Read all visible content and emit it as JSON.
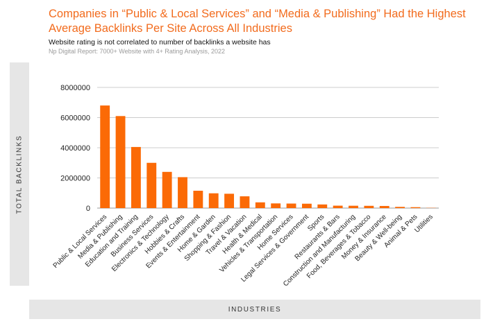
{
  "header": {
    "title": "Companies in “Public & Local Services” and “Media & Publishing” Had the Highest Average Backlinks Per Site Across All Industries",
    "subtitle": "Website rating is not correlated to number of backlinks a website has",
    "source": "Np Digital Report: 7000+ Website with 4+ Rating Analysis, 2022"
  },
  "colors": {
    "title": "#f26b1d",
    "bar": "#fb6a06",
    "grid": "#cccccc",
    "band": "#e6e6e6"
  },
  "chart_data": {
    "type": "bar",
    "title": "Companies in “Public & Local Services” and “Media & Publishing” Had the Highest Average Backlinks Per Site Across All Industries",
    "subtitle": "Website rating is not correlated to number of backlinks a website has",
    "xlabel": "INDUSTRIES",
    "ylabel": "TOTAL BACKLINKS",
    "ylim": [
      0,
      8000000
    ],
    "yticks": [
      "0",
      "2000000",
      "4000000",
      "6000000",
      "8000000"
    ],
    "grid": true,
    "categories": [
      "Public & Local Services",
      "Media & Publishing",
      "Education and Training",
      "Business Services",
      "Electronics & Technology",
      "Hobbies & Crafts",
      "Events & Entertainment",
      "Home & Garden",
      "Shopping & Fashion",
      "Travel & Vacation",
      "Health & Medical",
      "Vehicles & Transportation",
      "Home Services",
      "Legal Services & Government",
      "Sports",
      "Restaurants & Bars",
      "Construction and Manufacturing",
      "Food, Beverages & Tobacco",
      "Money & Insurance",
      "Beauty & Well-being",
      "Animal & Pets",
      "Utilities"
    ],
    "values": [
      6800000,
      6100000,
      4050000,
      3000000,
      2400000,
      2050000,
      1150000,
      980000,
      950000,
      780000,
      380000,
      310000,
      300000,
      290000,
      240000,
      160000,
      155000,
      150000,
      140000,
      80000,
      60000,
      15000
    ]
  }
}
